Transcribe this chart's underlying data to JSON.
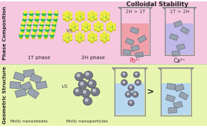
{
  "top_bg": "#f5c8e0",
  "bottom_bg": "#e8f5b0",
  "top_label": "Phase Composition",
  "bottom_label": "Geometric Structure",
  "colloidal_title": "Colloidal Stability",
  "beaker1_label": "2H > 1T",
  "beaker2_label": "1T > 2H",
  "pb_label": "Pb²⁺",
  "ca_label": "Ca²⁺",
  "phase1_label": "1T phase",
  "phase2_label": "2H phase",
  "vs_text": "vs",
  "ns_label": "MoS₂ nanosheets",
  "np_label": "MoS₂ nanoparticles",
  "gt_text": ">",
  "beaker_fill_pink": "#f0a0a8",
  "beaker_fill_purple": "#c0b8e8",
  "beaker_fill_blue": "#b8d8f0",
  "sheet_color": "#9aa4b0",
  "sheet_edge": "#606878",
  "particle_color": "#787888",
  "particle_edge": "#505060",
  "mo_color": "#22bb55",
  "s_color_top": "#eeee44",
  "s_color_bot": "#cccc22",
  "bond_color": "#888888",
  "label_color": "#222222",
  "vs_color": "#666666",
  "pb_color": "#cc3333",
  "beaker_edge": "#888888"
}
